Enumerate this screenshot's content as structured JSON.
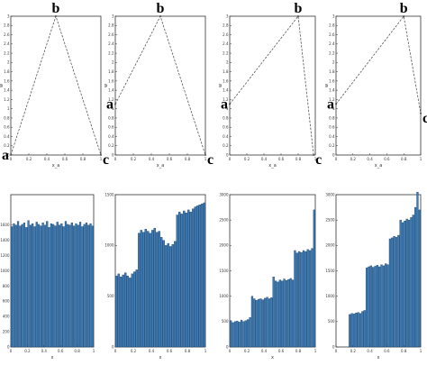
{
  "chart_data": [
    {
      "type": "line",
      "xlabel": "x_a",
      "ylabel": "w",
      "xlim": [
        0,
        1
      ],
      "ylim": [
        0,
        3
      ],
      "xticks": [
        "0",
        "0.2",
        "0.4",
        "0.6",
        "0.8",
        "1"
      ],
      "yticks": [
        "0",
        "0.2",
        "0.4",
        "0.6",
        "0.8",
        "1",
        "1.2",
        "1.4",
        "1.6",
        "1.8",
        "2",
        "2.2",
        "2.4",
        "2.6",
        "2.8",
        "3"
      ],
      "series": [
        {
          "x": [
            0,
            0.5,
            1
          ],
          "y": [
            0,
            3,
            0
          ]
        }
      ],
      "vertices": [
        {
          "label": "a",
          "x": 0,
          "y": 0
        },
        {
          "label": "b",
          "x": 0.5,
          "y": 3
        },
        {
          "label": "c",
          "x": 1,
          "y": 0
        }
      ]
    },
    {
      "type": "line",
      "xlabel": "x_a",
      "ylabel": "w",
      "xlim": [
        0,
        1
      ],
      "ylim": [
        0,
        3
      ],
      "xticks": [
        "0",
        "0.2",
        "0.4",
        "0.6",
        "0.8",
        "1"
      ],
      "yticks": [
        "0",
        "0.2",
        "0.4",
        "0.6",
        "0.8",
        "1",
        "1.2",
        "1.4",
        "1.6",
        "1.8",
        "2",
        "2.2",
        "2.4",
        "2.6",
        "2.8",
        "3"
      ],
      "series": [
        {
          "x": [
            0,
            0.5,
            1
          ],
          "y": [
            1.1,
            3,
            0
          ]
        }
      ],
      "vertices": [
        {
          "label": "a",
          "x": 0,
          "y": 1.1
        },
        {
          "label": "b",
          "x": 0.5,
          "y": 3
        },
        {
          "label": "c",
          "x": 1,
          "y": 0
        }
      ]
    },
    {
      "type": "line",
      "xlabel": "x_a",
      "ylabel": "w",
      "xlim": [
        0,
        1
      ],
      "ylim": [
        0,
        3
      ],
      "xticks": [
        "0",
        "0.2",
        "0.4",
        "0.6",
        "0.8",
        "1"
      ],
      "yticks": [
        "0",
        "0.2",
        "0.4",
        "0.6",
        "0.8",
        "1",
        "1.2",
        "1.4",
        "1.6",
        "1.8",
        "2",
        "2.2",
        "2.4",
        "2.6",
        "2.8",
        "3"
      ],
      "series": [
        {
          "x": [
            0,
            0.8,
            0.98
          ],
          "y": [
            1.1,
            3,
            0
          ]
        }
      ],
      "vertices": [
        {
          "label": "a",
          "x": 0,
          "y": 1.1
        },
        {
          "label": "b",
          "x": 0.8,
          "y": 3
        },
        {
          "label": "c",
          "x": 0.98,
          "y": 0
        }
      ]
    },
    {
      "type": "line",
      "xlabel": "x_a",
      "ylabel": "w",
      "xlim": [
        0,
        1
      ],
      "ylim": [
        0,
        3
      ],
      "xticks": [
        "0",
        "0.2",
        "0.4",
        "0.6",
        "0.8",
        "1"
      ],
      "yticks": [
        "0",
        "0.2",
        "0.4",
        "0.6",
        "0.8",
        "1",
        "1.2",
        "1.4",
        "1.6",
        "1.8",
        "2",
        "2.2",
        "2.4",
        "2.6",
        "2.8",
        "3"
      ],
      "series": [
        {
          "x": [
            0,
            0.8,
            1
          ],
          "y": [
            1.1,
            3,
            0.9
          ]
        }
      ],
      "vertices": [
        {
          "label": "a",
          "x": 0,
          "y": 1.1
        },
        {
          "label": "b",
          "x": 0.8,
          "y": 3
        },
        {
          "label": "c",
          "x": 1,
          "y": 0.9
        }
      ]
    },
    {
      "type": "bar",
      "xlabel": "x",
      "xlim": [
        0,
        1
      ],
      "ylim": [
        0,
        2000
      ],
      "xticks": [
        "0",
        "0.2",
        "0.4",
        "0.6",
        "0.8",
        "1"
      ],
      "yticks": [
        "0",
        "200",
        "400",
        "600",
        "800",
        "1000",
        "1200",
        "1400",
        "1600"
      ],
      "values": [
        1580,
        1620,
        1600,
        1650,
        1590,
        1610,
        1630,
        1570,
        1660,
        1600,
        1620,
        1580,
        1640,
        1610,
        1590,
        1630,
        1600,
        1650,
        1570,
        1620,
        1610,
        1590,
        1640,
        1600,
        1620,
        1580,
        1650,
        1610,
        1600,
        1630,
        1590,
        1620,
        1600,
        1640,
        1580,
        1610,
        1630,
        1600,
        1620,
        1590
      ]
    },
    {
      "type": "bar",
      "xlabel": "x",
      "xlim": [
        0,
        1
      ],
      "ylim": [
        0,
        1500
      ],
      "xticks": [
        "0",
        "0.2",
        "0.4",
        "0.6",
        "0.8",
        "1"
      ],
      "yticks": [
        "0",
        "500",
        "1000",
        "1500"
      ],
      "values": [
        700,
        720,
        690,
        710,
        730,
        700,
        680,
        720,
        740,
        760,
        1120,
        1150,
        1130,
        1160,
        1140,
        1120,
        1150,
        1170,
        1130,
        1140,
        1080,
        1050,
        1000,
        1020,
        990,
        1010,
        1040,
        1300,
        1330,
        1310,
        1340,
        1320,
        1350,
        1330,
        1360,
        1380,
        1390,
        1400,
        1410,
        1420
      ]
    },
    {
      "type": "bar",
      "xlabel": "x",
      "xlim": [
        0,
        1
      ],
      "ylim": [
        0,
        3000
      ],
      "xticks": [
        "0",
        "0.2",
        "0.4",
        "0.6",
        "0.8",
        "1"
      ],
      "yticks": [
        "0",
        "500",
        "1000",
        "1500",
        "2000",
        "2500",
        "3000"
      ],
      "values": [
        520,
        480,
        500,
        510,
        490,
        530,
        500,
        520,
        540,
        580,
        1000,
        950,
        920,
        940,
        950,
        930,
        960,
        980,
        950,
        970,
        1380,
        1300,
        1280,
        1320,
        1300,
        1340,
        1310,
        1330,
        1350,
        1320,
        1900,
        1850,
        1880,
        1860,
        1900,
        1880,
        1920,
        1900,
        1940,
        2700
      ]
    },
    {
      "type": "bar",
      "xlabel": "x",
      "xlim": [
        0,
        1
      ],
      "ylim": [
        0,
        3000
      ],
      "xticks": [
        "0",
        "0.2",
        "0.4",
        "0.6",
        "0.8",
        "1"
      ],
      "yticks": [
        "0",
        "500",
        "1000",
        "1500",
        "2000",
        "2500",
        "3000"
      ],
      "values": [
        0,
        0,
        0,
        0,
        0,
        0,
        640,
        660,
        650,
        670,
        680,
        660,
        700,
        720,
        1560,
        1580,
        1600,
        1570,
        1590,
        1610,
        1580,
        1620,
        1600,
        1640,
        1620,
        2130,
        2150,
        2180,
        2160,
        2200,
        2500,
        2450,
        2480,
        2520,
        2500,
        2550,
        2600,
        2750,
        3050,
        2700
      ]
    }
  ]
}
